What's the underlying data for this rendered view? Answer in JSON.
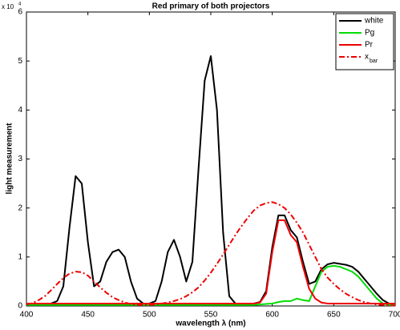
{
  "chart_data": {
    "type": "line",
    "title": "Red primary of both projectors",
    "xlabel": "wavelength λ (nm)",
    "ylabel": "light measurement",
    "y_multiplier": "x 10",
    "y_multiplier_exponent": "4",
    "legend_subscript": "bar",
    "legend": "upper right",
    "x": [
      400,
      405,
      410,
      415,
      420,
      425,
      430,
      435,
      440,
      445,
      450,
      455,
      460,
      465,
      470,
      475,
      480,
      485,
      490,
      495,
      500,
      505,
      510,
      515,
      520,
      525,
      530,
      535,
      540,
      545,
      550,
      555,
      560,
      565,
      570,
      575,
      580,
      585,
      590,
      595,
      600,
      605,
      610,
      615,
      620,
      625,
      630,
      635,
      640,
      645,
      650,
      655,
      660,
      665,
      670,
      675,
      680,
      685,
      690,
      695,
      700
    ],
    "xlim": [
      400,
      700
    ],
    "xticks": [
      400,
      450,
      500,
      550,
      600,
      650,
      700
    ],
    "ylim": [
      0,
      6
    ],
    "yticks": [
      0,
      1,
      2,
      3,
      4,
      5,
      6
    ],
    "series": [
      {
        "name": "white",
        "color": "#000000",
        "dash": "solid",
        "values": [
          0.05,
          0.05,
          0.05,
          0.05,
          0.05,
          0.1,
          0.4,
          1.6,
          2.65,
          2.5,
          1.3,
          0.4,
          0.5,
          0.9,
          1.1,
          1.15,
          1.0,
          0.5,
          0.15,
          0.05,
          0.05,
          0.1,
          0.5,
          1.1,
          1.35,
          1.0,
          0.5,
          0.9,
          2.8,
          4.6,
          5.1,
          4.0,
          1.5,
          0.2,
          0.05,
          0.05,
          0.05,
          0.05,
          0.08,
          0.3,
          1.2,
          1.85,
          1.85,
          1.55,
          1.4,
          0.9,
          0.45,
          0.5,
          0.75,
          0.85,
          0.88,
          0.86,
          0.84,
          0.8,
          0.7,
          0.55,
          0.4,
          0.25,
          0.12,
          0.05,
          0.05
        ]
      },
      {
        "name": "Pg",
        "color": "#00dd00",
        "dash": "solid",
        "values": [
          0.02,
          0.02,
          0.02,
          0.02,
          0.02,
          0.02,
          0.02,
          0.02,
          0.02,
          0.02,
          0.02,
          0.02,
          0.02,
          0.02,
          0.02,
          0.02,
          0.02,
          0.02,
          0.02,
          0.02,
          0.02,
          0.02,
          0.02,
          0.02,
          0.02,
          0.02,
          0.02,
          0.02,
          0.02,
          0.02,
          0.02,
          0.02,
          0.02,
          0.02,
          0.02,
          0.02,
          0.02,
          0.02,
          0.03,
          0.04,
          0.05,
          0.08,
          0.1,
          0.1,
          0.15,
          0.12,
          0.1,
          0.4,
          0.7,
          0.8,
          0.82,
          0.8,
          0.75,
          0.7,
          0.6,
          0.45,
          0.3,
          0.15,
          0.05,
          0.02,
          0.02
        ]
      },
      {
        "name": "Pr",
        "color": "#ee0000",
        "dash": "solid",
        "values": [
          0.05,
          0.05,
          0.05,
          0.05,
          0.05,
          0.05,
          0.05,
          0.05,
          0.05,
          0.05,
          0.05,
          0.05,
          0.05,
          0.05,
          0.05,
          0.05,
          0.05,
          0.05,
          0.05,
          0.05,
          0.05,
          0.05,
          0.05,
          0.05,
          0.05,
          0.05,
          0.05,
          0.05,
          0.05,
          0.05,
          0.05,
          0.05,
          0.05,
          0.05,
          0.05,
          0.05,
          0.05,
          0.05,
          0.07,
          0.25,
          1.1,
          1.75,
          1.75,
          1.45,
          1.3,
          0.8,
          0.35,
          0.15,
          0.07,
          0.05,
          0.05,
          0.05,
          0.05,
          0.05,
          0.05,
          0.05,
          0.05,
          0.05,
          0.05,
          0.05,
          0.05
        ]
      },
      {
        "name": "x",
        "color": "#ee0000",
        "dash": "dashdot",
        "values": [
          0.03,
          0.06,
          0.12,
          0.2,
          0.32,
          0.45,
          0.57,
          0.66,
          0.7,
          0.69,
          0.62,
          0.5,
          0.38,
          0.27,
          0.18,
          0.12,
          0.07,
          0.04,
          0.02,
          0.02,
          0.02,
          0.03,
          0.05,
          0.07,
          0.1,
          0.14,
          0.2,
          0.28,
          0.38,
          0.52,
          0.68,
          0.86,
          1.05,
          1.25,
          1.45,
          1.63,
          1.8,
          1.95,
          2.05,
          2.1,
          2.12,
          2.08,
          2.0,
          1.87,
          1.7,
          1.5,
          1.25,
          1.0,
          0.75,
          0.58,
          0.45,
          0.34,
          0.25,
          0.18,
          0.12,
          0.08,
          0.05,
          0.03,
          0.02,
          0.01,
          0.01
        ]
      }
    ]
  }
}
